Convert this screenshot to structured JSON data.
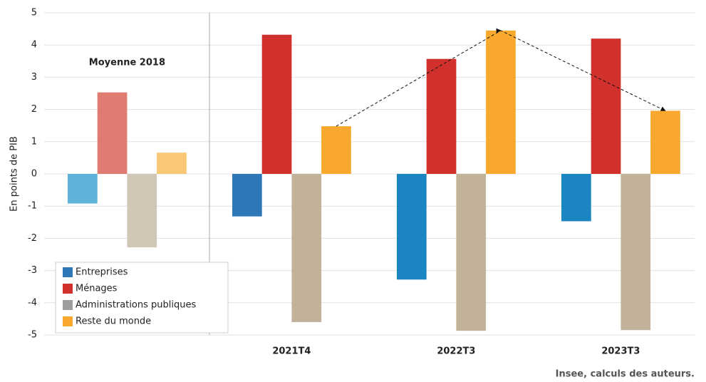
{
  "chart_data": {
    "type": "bar",
    "y_label": "En points de PIB",
    "source": "Insee, calculs des auteurs.",
    "categories": [
      "Moyenne 2018",
      "2021T4",
      "2022T3",
      "2023T3"
    ],
    "series": [
      {
        "name": "Entreprises",
        "color": "#2f78b8",
        "point_colors": [
          "#5fb2d9",
          "#2f78b8",
          "#1a85c0",
          "#1a85c0"
        ],
        "values": [
          -0.92,
          -1.32,
          -3.28,
          -1.47
        ]
      },
      {
        "name": "Ménages",
        "color": "#d0312d",
        "point_colors": [
          "#e07b72",
          "#d0312d",
          "#d0312d",
          "#d0312d"
        ],
        "values": [
          2.53,
          4.32,
          3.57,
          4.2
        ]
      },
      {
        "name": "Administrations publiques",
        "color": "#9e9e9e",
        "point_colors": [
          "#d1c7b6",
          "#c2b29a",
          "#c2b29a",
          "#c2b29a"
        ],
        "values": [
          -2.28,
          -4.6,
          -4.87,
          -4.85
        ]
      },
      {
        "name": "Reste du monde",
        "color": "#f9a82e",
        "point_colors": [
          "#f8c877",
          "#f9a82e",
          "#f9a82e",
          "#f9a82e"
        ],
        "values": [
          0.66,
          1.48,
          4.45,
          1.96
        ]
      }
    ],
    "ylim": [
      -5,
      5
    ],
    "yticks": [
      -5,
      -4,
      -3,
      -2,
      -1,
      0,
      1,
      2,
      3,
      4,
      5
    ],
    "grid": true,
    "legend": "bottom-left"
  }
}
